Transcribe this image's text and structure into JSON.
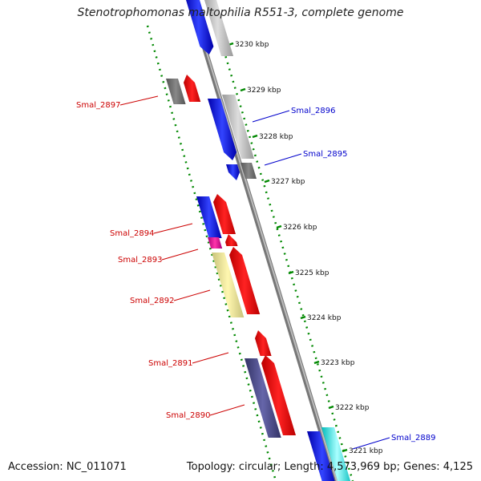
{
  "title": "Stenotrophomonas maltophilia R551-3, complete genome",
  "footer": {
    "accession": "Accession: NC_011071",
    "summary": "Topology: circular; Length: 4,573,969 bp; Genes: 4,125"
  },
  "colors": {
    "left_label": "#cc0000",
    "right_label": "#0000cc",
    "backbone": "#888888",
    "ticks": "#008800"
  },
  "ticks": [
    {
      "label": "3230 kbp"
    },
    {
      "label": "3229 kbp"
    },
    {
      "label": "3228 kbp"
    },
    {
      "label": "3227 kbp"
    },
    {
      "label": "3226 kbp"
    },
    {
      "label": "3225 kbp"
    },
    {
      "label": "3224 kbp"
    },
    {
      "label": "3223 kbp"
    },
    {
      "label": "3222 kbp"
    },
    {
      "label": "3221 kbp"
    }
  ],
  "gene_labels_left": [
    {
      "name": "Smal_2897"
    },
    {
      "name": "Smal_2894"
    },
    {
      "name": "Smal_2893"
    },
    {
      "name": "Smal_2892"
    },
    {
      "name": "Smal_2891"
    },
    {
      "name": "Smal_2890"
    }
  ],
  "gene_labels_right": [
    {
      "name": "Smal_2896"
    },
    {
      "name": "Smal_2895"
    },
    {
      "name": "Smal_2889"
    }
  ]
}
